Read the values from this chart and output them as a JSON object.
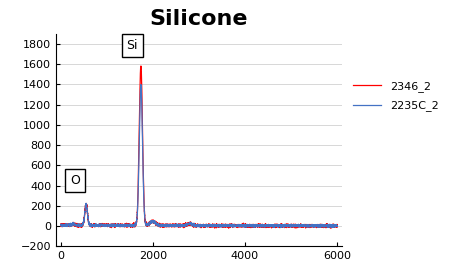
{
  "title": "Silicone",
  "title_fontsize": 16,
  "title_fontweight": "bold",
  "xlabel": "",
  "ylabel": "",
  "xlim": [
    -100,
    6100
  ],
  "ylim": [
    -200,
    1900
  ],
  "yticks": [
    -200,
    0,
    200,
    400,
    600,
    800,
    1000,
    1200,
    1400,
    1600,
    1800
  ],
  "xticks": [
    0,
    2000,
    4000,
    6000
  ],
  "line1_color": "#4472C4",
  "line2_color": "#FF0000",
  "line1_label": "2235C_2",
  "line2_label": "2346_2",
  "O_peak_x": 550,
  "O_peak_y": 210,
  "Si_peak_x": 1740,
  "Si_peak_y": 1570,
  "annotation_O": "O",
  "annotation_Si": "Si",
  "background_color": "#FFFFFF",
  "grid_color": "#C8C8C8",
  "fig_width": 4.68,
  "fig_height": 2.8,
  "tick_fontsize": 8,
  "legend_fontsize": 8
}
